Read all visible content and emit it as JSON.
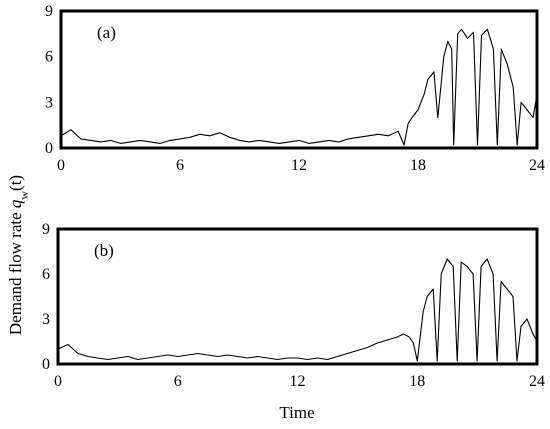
{
  "figure": {
    "ylabel_prefix": "Demand flow rate ",
    "ylabel_symbol": "q",
    "ylabel_subscript": "w",
    "ylabel_suffix": "(t)",
    "xlabel": "Time"
  },
  "chart_data": [
    {
      "type": "line",
      "panel_label": "(a)",
      "xlabel": "Time",
      "ylabel": "Demand flow rate q_w(t)",
      "xlim": [
        0,
        24
      ],
      "ylim": [
        0,
        9
      ],
      "xticks": [
        "0",
        "6",
        "12",
        "18",
        "24"
      ],
      "yticks": [
        "0",
        "3",
        "6",
        "9"
      ],
      "grid": false,
      "line_color": "#000000",
      "series": [
        {
          "x": [
            0,
            0.5,
            1,
            1.5,
            2,
            2.5,
            3,
            3.5,
            4,
            4.5,
            5,
            5.5,
            6,
            6.5,
            7,
            7.5,
            8,
            8.5,
            9,
            9.5,
            10,
            10.5,
            11,
            11.5,
            12,
            12.5,
            13,
            13.5,
            14,
            14.5,
            15,
            15.5,
            16,
            16.5,
            17,
            17.3,
            17.5,
            17.7,
            18,
            18.3,
            18.5,
            18.8,
            19,
            19.3,
            19.5,
            19.7,
            19.8,
            20,
            20.2,
            20.5,
            20.8,
            21,
            21.2,
            21.5,
            21.8,
            22,
            22.2,
            22.5,
            22.8,
            23,
            23.2,
            23.5,
            23.8,
            24
          ],
          "y": [
            0.8,
            1.2,
            0.6,
            0.5,
            0.4,
            0.5,
            0.3,
            0.4,
            0.5,
            0.4,
            0.3,
            0.5,
            0.6,
            0.7,
            0.9,
            0.8,
            1.0,
            0.7,
            0.5,
            0.4,
            0.5,
            0.4,
            0.3,
            0.4,
            0.5,
            0.3,
            0.4,
            0.5,
            0.4,
            0.6,
            0.7,
            0.8,
            0.9,
            0.8,
            1.1,
            0.2,
            1.6,
            2.0,
            2.5,
            3.5,
            4.5,
            5.0,
            2.0,
            6.0,
            7.0,
            6.5,
            0.2,
            7.5,
            7.8,
            7.2,
            7.6,
            0.2,
            7.4,
            7.8,
            6.5,
            0.2,
            6.5,
            5.5,
            4.0,
            0.2,
            3.0,
            2.5,
            2.0,
            3.5
          ]
        }
      ]
    },
    {
      "type": "line",
      "panel_label": "(b)",
      "xlabel": "Time",
      "ylabel": "Demand flow rate q_w(t)",
      "xlim": [
        0,
        24
      ],
      "ylim": [
        0,
        9
      ],
      "xticks": [
        "0",
        "6",
        "12",
        "18",
        "24"
      ],
      "yticks": [
        "0",
        "3",
        "6",
        "9"
      ],
      "grid": false,
      "line_color": "#000000",
      "series": [
        {
          "x": [
            0,
            0.5,
            1,
            1.5,
            2,
            2.5,
            3,
            3.5,
            4,
            4.5,
            5,
            5.5,
            6,
            6.5,
            7,
            7.5,
            8,
            8.5,
            9,
            9.5,
            10,
            10.5,
            11,
            11.5,
            12,
            12.5,
            13,
            13.5,
            14,
            14.5,
            15,
            15.5,
            16,
            16.5,
            17,
            17.3,
            17.6,
            17.8,
            18,
            18.3,
            18.5,
            18.8,
            19,
            19.2,
            19.5,
            19.8,
            20,
            20.2,
            20.5,
            20.8,
            21,
            21.2,
            21.5,
            21.8,
            22,
            22.2,
            22.5,
            22.8,
            23,
            23.2,
            23.5,
            23.8,
            24
          ],
          "y": [
            1.0,
            1.3,
            0.7,
            0.5,
            0.4,
            0.3,
            0.4,
            0.5,
            0.3,
            0.4,
            0.5,
            0.6,
            0.5,
            0.6,
            0.7,
            0.6,
            0.5,
            0.6,
            0.5,
            0.4,
            0.5,
            0.4,
            0.3,
            0.4,
            0.4,
            0.3,
            0.4,
            0.3,
            0.5,
            0.7,
            0.9,
            1.1,
            1.4,
            1.6,
            1.8,
            2.0,
            1.8,
            1.4,
            0.2,
            3.5,
            4.5,
            5.0,
            0.2,
            6.0,
            7.0,
            6.5,
            0.2,
            6.8,
            6.5,
            6.0,
            0.2,
            6.5,
            7.0,
            6.0,
            0.2,
            5.5,
            5.0,
            4.5,
            0.2,
            2.5,
            3.0,
            2.0,
            1.5
          ]
        }
      ]
    }
  ]
}
